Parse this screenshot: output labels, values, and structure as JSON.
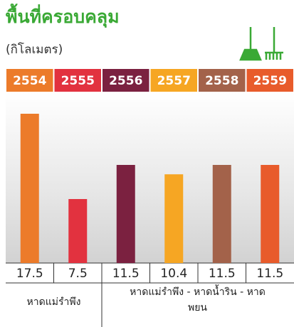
{
  "chart_data": {
    "type": "bar",
    "title": "พื้นที่ครอบคลุม",
    "subtitle": "(กิโลเมตร)",
    "categories": [
      "2554",
      "2555",
      "2556",
      "2557",
      "2558",
      "2559"
    ],
    "values": [
      17.5,
      7.5,
      11.5,
      10.4,
      11.5,
      11.5
    ],
    "colors": [
      "#ec7b2a",
      "#e2323f",
      "#7b2140",
      "#f6a623",
      "#a3624a",
      "#e85b2b"
    ],
    "coverage_labels": [
      "หาดแม่รำพึง",
      "หาดแม่รำพึง - หาดน้ำริน - หาดพยน"
    ]
  }
}
